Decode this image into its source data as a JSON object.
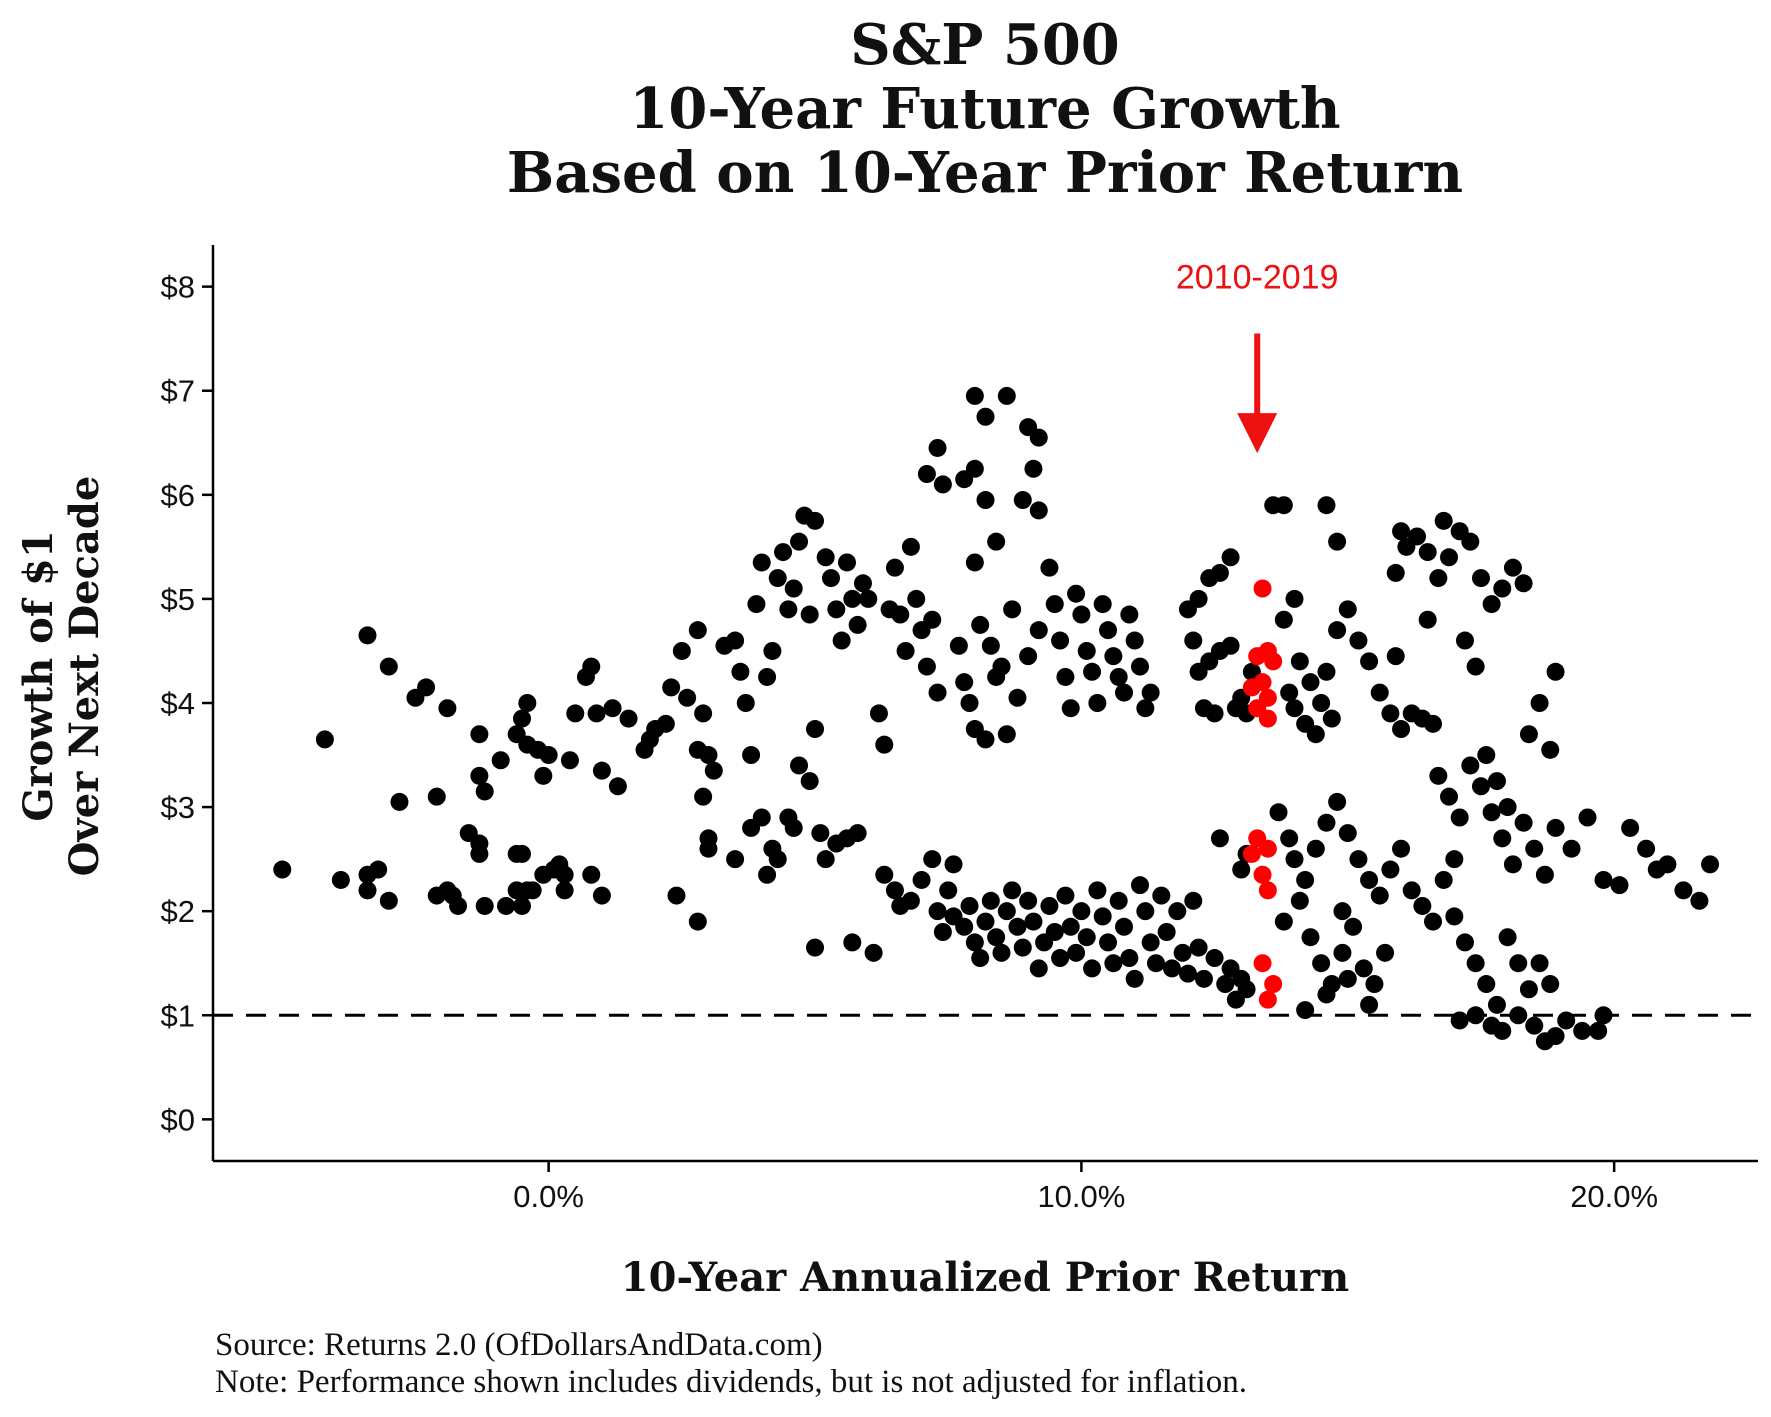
{
  "chart_data": {
    "type": "scatter",
    "title_lines": [
      "S&P 500",
      "10-Year Future Growth",
      "Based on 10-Year Prior Return"
    ],
    "xlabel": "10-Year Annualized Prior Return",
    "ylabel_lines": [
      "Growth of $1",
      "Over Next Decade"
    ],
    "x_ticks": [
      0,
      10,
      20
    ],
    "x_tick_labels": [
      "0.0%",
      "10.0%",
      "20.0%"
    ],
    "y_ticks": [
      0,
      1,
      2,
      3,
      4,
      5,
      6,
      7,
      8
    ],
    "y_tick_labels": [
      "$0",
      "$1",
      "$2",
      "$3",
      "$4",
      "$5",
      "$6",
      "$7",
      "$8"
    ],
    "xlim": [
      -6.3,
      22.7
    ],
    "ylim": [
      -0.4,
      8.4
    ],
    "reference_line": {
      "y": 1,
      "style": "dashed"
    },
    "grid": false,
    "colors": {
      "points": "#000000",
      "highlight": "#ff0000",
      "annotation": "#ee1111"
    },
    "annotation": {
      "text": "2010-2019",
      "arrow_x": 13.3,
      "arrow_from_y": 7.55,
      "arrow_to_y": 6.4
    },
    "highlight_points": [
      [
        13.4,
        5.1
      ],
      [
        13.3,
        4.45
      ],
      [
        13.5,
        4.5
      ],
      [
        13.6,
        4.4
      ],
      [
        13.2,
        4.15
      ],
      [
        13.4,
        4.2
      ],
      [
        13.5,
        4.05
      ],
      [
        13.3,
        3.95
      ],
      [
        13.5,
        3.85
      ],
      [
        13.3,
        2.7
      ],
      [
        13.5,
        2.6
      ],
      [
        13.2,
        2.55
      ],
      [
        13.4,
        2.35
      ],
      [
        13.5,
        2.2
      ],
      [
        13.4,
        1.5
      ],
      [
        13.6,
        1.3
      ],
      [
        13.5,
        1.15
      ]
    ],
    "points": [
      [
        -5,
        2.4
      ],
      [
        -4.2,
        3.65
      ],
      [
        -3.9,
        2.3
      ],
      [
        -3.4,
        4.65
      ],
      [
        -3.4,
        2.35
      ],
      [
        -3.2,
        2.4
      ],
      [
        -3.0,
        4.35
      ],
      [
        -2.8,
        3.05
      ],
      [
        -2.5,
        4.05
      ],
      [
        -2.3,
        4.15
      ],
      [
        -2.1,
        3.1
      ],
      [
        -1.9,
        3.95
      ],
      [
        -3.4,
        2.2
      ],
      [
        -3.0,
        2.1
      ],
      [
        -2.1,
        2.15
      ],
      [
        -1.8,
        2.15
      ],
      [
        -1.9,
        2.2
      ],
      [
        -1.5,
        2.75
      ],
      [
        -1.3,
        2.55
      ],
      [
        -1.3,
        2.65
      ],
      [
        -1.7,
        2.05
      ],
      [
        -1.3,
        3.3
      ],
      [
        -1.3,
        3.7
      ],
      [
        -1.2,
        3.15
      ],
      [
        -0.9,
        3.45
      ],
      [
        -0.6,
        3.7
      ],
      [
        -0.5,
        3.85
      ],
      [
        -0.4,
        3.6
      ],
      [
        -0.2,
        3.55
      ],
      [
        -0.6,
        2.55
      ],
      [
        -1.2,
        2.05
      ],
      [
        -0.8,
        2.05
      ],
      [
        -0.5,
        2.05
      ],
      [
        -0.4,
        2.2
      ],
      [
        -0.5,
        2.55
      ],
      [
        -0.6,
        2.2
      ],
      [
        -0.3,
        2.2
      ],
      [
        -0.1,
        2.35
      ],
      [
        0.1,
        2.4
      ],
      [
        0.2,
        2.45
      ],
      [
        0.3,
        2.35
      ],
      [
        -0.4,
        4.0
      ],
      [
        0.0,
        3.5
      ],
      [
        -0.1,
        3.3
      ],
      [
        0.3,
        2.2
      ],
      [
        0.4,
        3.45
      ],
      [
        0.5,
        3.9
      ],
      [
        0.7,
        4.25
      ],
      [
        0.8,
        4.35
      ],
      [
        0.9,
        3.9
      ],
      [
        0.8,
        2.35
      ],
      [
        1.0,
        2.15
      ],
      [
        1.0,
        3.35
      ],
      [
        1.2,
        3.95
      ],
      [
        1.3,
        3.2
      ],
      [
        1.5,
        3.85
      ],
      [
        1.8,
        3.55
      ],
      [
        1.9,
        3.65
      ],
      [
        2.0,
        3.75
      ],
      [
        2.2,
        3.8
      ],
      [
        2.3,
        4.15
      ],
      [
        2.4,
        2.15
      ],
      [
        2.5,
        4.5
      ],
      [
        2.6,
        4.05
      ],
      [
        2.8,
        3.55
      ],
      [
        2.8,
        4.7
      ],
      [
        2.9,
        3.9
      ],
      [
        3.0,
        3.5
      ],
      [
        3.1,
        3.35
      ],
      [
        2.9,
        3.1
      ],
      [
        3.0,
        2.7
      ],
      [
        3.0,
        2.6
      ],
      [
        2.8,
        1.9
      ],
      [
        3.3,
        4.55
      ],
      [
        3.5,
        4.6
      ],
      [
        3.6,
        4.3
      ],
      [
        3.7,
        4.0
      ],
      [
        3.8,
        3.5
      ],
      [
        3.9,
        4.95
      ],
      [
        4.0,
        5.35
      ],
      [
        4.1,
        4.25
      ],
      [
        4.2,
        4.5
      ],
      [
        4.3,
        5.2
      ],
      [
        4.4,
        5.45
      ],
      [
        4.5,
        4.9
      ],
      [
        4.6,
        5.1
      ],
      [
        4.7,
        5.55
      ],
      [
        4.8,
        5.8
      ],
      [
        4.9,
        4.85
      ],
      [
        5.0,
        5.75
      ],
      [
        3.5,
        2.5
      ],
      [
        3.8,
        2.8
      ],
      [
        4.0,
        2.9
      ],
      [
        4.2,
        2.6
      ],
      [
        4.3,
        2.5
      ],
      [
        4.1,
        2.35
      ],
      [
        4.5,
        2.9
      ],
      [
        4.6,
        2.8
      ],
      [
        4.7,
        3.4
      ],
      [
        4.9,
        3.25
      ],
      [
        5.0,
        3.75
      ],
      [
        5.2,
        5.4
      ],
      [
        5.3,
        5.2
      ],
      [
        5.4,
        4.9
      ],
      [
        5.5,
        4.6
      ],
      [
        5.6,
        5.35
      ],
      [
        5.7,
        5.0
      ],
      [
        5.8,
        4.75
      ],
      [
        5.9,
        5.15
      ],
      [
        6.0,
        5.0
      ],
      [
        5.1,
        2.75
      ],
      [
        5.2,
        2.5
      ],
      [
        5.4,
        2.65
      ],
      [
        5.6,
        2.7
      ],
      [
        5.8,
        2.75
      ],
      [
        5.0,
        1.65
      ],
      [
        5.7,
        1.7
      ],
      [
        6.1,
        1.6
      ],
      [
        6.2,
        3.9
      ],
      [
        6.3,
        3.6
      ],
      [
        6.4,
        4.9
      ],
      [
        6.5,
        5.3
      ],
      [
        6.6,
        4.85
      ],
      [
        6.7,
        4.5
      ],
      [
        6.8,
        5.5
      ],
      [
        6.9,
        5.0
      ],
      [
        7.0,
        4.7
      ],
      [
        7.1,
        4.35
      ],
      [
        7.2,
        4.8
      ],
      [
        7.3,
        4.1
      ],
      [
        6.3,
        2.35
      ],
      [
        6.5,
        2.2
      ],
      [
        6.6,
        2.05
      ],
      [
        6.8,
        2.1
      ],
      [
        7.0,
        2.3
      ],
      [
        7.2,
        2.5
      ],
      [
        7.3,
        2.0
      ],
      [
        7.4,
        1.8
      ],
      [
        7.5,
        2.2
      ],
      [
        7.6,
        2.45
      ],
      [
        7.1,
        6.2
      ],
      [
        7.3,
        6.45
      ],
      [
        7.4,
        6.1
      ],
      [
        7.8,
        6.15
      ],
      [
        8.0,
        6.95
      ],
      [
        8.2,
        6.75
      ],
      [
        8.6,
        6.95
      ],
      [
        8.2,
        5.95
      ],
      [
        8.0,
        6.25
      ],
      [
        9.0,
        6.65
      ],
      [
        9.2,
        6.55
      ],
      [
        9.1,
        6.25
      ],
      [
        8.9,
        5.95
      ],
      [
        9.2,
        5.85
      ],
      [
        8.4,
        5.55
      ],
      [
        8.0,
        5.35
      ],
      [
        8.1,
        4.75
      ],
      [
        8.3,
        4.55
      ],
      [
        8.5,
        4.35
      ],
      [
        8.7,
        4.9
      ],
      [
        7.7,
        4.55
      ],
      [
        7.8,
        4.2
      ],
      [
        7.9,
        4.0
      ],
      [
        8.0,
        3.75
      ],
      [
        8.2,
        3.65
      ],
      [
        8.4,
        4.25
      ],
      [
        8.6,
        3.7
      ],
      [
        8.8,
        4.05
      ],
      [
        9.0,
        4.45
      ],
      [
        9.2,
        4.7
      ],
      [
        7.6,
        1.95
      ],
      [
        7.8,
        1.85
      ],
      [
        7.9,
        2.05
      ],
      [
        8.0,
        1.7
      ],
      [
        8.1,
        1.55
      ],
      [
        8.2,
        1.9
      ],
      [
        8.3,
        2.1
      ],
      [
        8.4,
        1.75
      ],
      [
        8.5,
        1.6
      ],
      [
        8.6,
        2.0
      ],
      [
        8.7,
        2.2
      ],
      [
        8.8,
        1.85
      ],
      [
        8.9,
        1.65
      ],
      [
        9.0,
        2.1
      ],
      [
        9.1,
        1.9
      ],
      [
        9.2,
        1.45
      ],
      [
        9.3,
        1.7
      ],
      [
        9.4,
        2.05
      ],
      [
        9.5,
        1.8
      ],
      [
        9.6,
        1.55
      ],
      [
        9.4,
        5.3
      ],
      [
        9.5,
        4.95
      ],
      [
        9.6,
        4.6
      ],
      [
        9.7,
        4.25
      ],
      [
        9.8,
        3.95
      ],
      [
        9.9,
        5.05
      ],
      [
        10.0,
        4.85
      ],
      [
        10.1,
        4.5
      ],
      [
        10.2,
        4.3
      ],
      [
        10.3,
        4.0
      ],
      [
        10.4,
        4.95
      ],
      [
        10.5,
        4.7
      ],
      [
        10.6,
        4.45
      ],
      [
        10.7,
        4.25
      ],
      [
        10.8,
        4.1
      ],
      [
        10.9,
        4.85
      ],
      [
        11.0,
        4.6
      ],
      [
        11.1,
        4.35
      ],
      [
        11.2,
        3.95
      ],
      [
        11.3,
        4.1
      ],
      [
        9.7,
        2.15
      ],
      [
        9.8,
        1.85
      ],
      [
        9.9,
        1.6
      ],
      [
        10.0,
        2.0
      ],
      [
        10.1,
        1.75
      ],
      [
        10.2,
        1.45
      ],
      [
        10.3,
        2.2
      ],
      [
        10.4,
        1.95
      ],
      [
        10.5,
        1.7
      ],
      [
        10.6,
        1.5
      ],
      [
        10.7,
        2.1
      ],
      [
        10.8,
        1.85
      ],
      [
        10.9,
        1.55
      ],
      [
        11.0,
        1.35
      ],
      [
        11.1,
        2.25
      ],
      [
        11.2,
        2.0
      ],
      [
        11.3,
        1.7
      ],
      [
        11.4,
        1.5
      ],
      [
        11.5,
        2.15
      ],
      [
        11.6,
        1.8
      ],
      [
        11.7,
        1.45
      ],
      [
        11.8,
        2.0
      ],
      [
        11.9,
        1.6
      ],
      [
        12.0,
        1.4
      ],
      [
        12.1,
        2.1
      ],
      [
        12.2,
        1.65
      ],
      [
        12.3,
        1.35
      ],
      [
        12.5,
        1.55
      ],
      [
        12.7,
        1.3
      ],
      [
        12.8,
        1.45
      ],
      [
        12.9,
        1.15
      ],
      [
        13.0,
        1.35
      ],
      [
        13.1,
        1.25
      ],
      [
        12.6,
        2.7
      ],
      [
        12.2,
        4.3
      ],
      [
        12.4,
        4.4
      ],
      [
        12.6,
        4.5
      ],
      [
        12.8,
        4.55
      ],
      [
        12.3,
        3.95
      ],
      [
        12.5,
        3.9
      ],
      [
        12.0,
        4.9
      ],
      [
        12.2,
        5.0
      ],
      [
        12.4,
        5.2
      ],
      [
        12.6,
        5.25
      ],
      [
        12.8,
        5.4
      ],
      [
        12.1,
        4.6
      ],
      [
        13.2,
        4.3
      ],
      [
        13.0,
        4.05
      ],
      [
        12.9,
        3.95
      ],
      [
        13.1,
        3.9
      ],
      [
        13.8,
        4.8
      ],
      [
        14.0,
        5.0
      ],
      [
        13.6,
        5.9
      ],
      [
        13.8,
        5.9
      ],
      [
        14.6,
        5.9
      ],
      [
        14.8,
        5.55
      ],
      [
        14.1,
        4.4
      ],
      [
        14.3,
        4.2
      ],
      [
        14.5,
        4.0
      ],
      [
        14.7,
        3.85
      ],
      [
        13.9,
        4.1
      ],
      [
        14.0,
        3.95
      ],
      [
        14.2,
        3.8
      ],
      [
        14.4,
        3.7
      ],
      [
        14.6,
        4.3
      ],
      [
        14.8,
        4.7
      ],
      [
        15.0,
        4.9
      ],
      [
        15.2,
        4.6
      ],
      [
        15.4,
        4.4
      ],
      [
        15.6,
        4.1
      ],
      [
        15.8,
        3.9
      ],
      [
        16.0,
        3.75
      ],
      [
        15.9,
        5.25
      ],
      [
        16.1,
        5.5
      ],
      [
        16.3,
        5.6
      ],
      [
        16.5,
        5.45
      ],
      [
        16.7,
        5.2
      ],
      [
        16.9,
        5.4
      ],
      [
        17.1,
        5.65
      ],
      [
        17.3,
        5.55
      ],
      [
        17.5,
        5.2
      ],
      [
        17.7,
        4.95
      ],
      [
        17.9,
        5.1
      ],
      [
        18.1,
        5.3
      ],
      [
        18.3,
        5.15
      ],
      [
        17.2,
        4.6
      ],
      [
        17.4,
        4.35
      ],
      [
        16.2,
        3.9
      ],
      [
        16.4,
        3.85
      ],
      [
        16.6,
        3.8
      ],
      [
        13.7,
        2.95
      ],
      [
        13.9,
        2.7
      ],
      [
        14.0,
        2.5
      ],
      [
        14.2,
        2.3
      ],
      [
        14.4,
        2.6
      ],
      [
        14.6,
        2.85
      ],
      [
        14.8,
        3.05
      ],
      [
        15.0,
        2.75
      ],
      [
        15.2,
        2.5
      ],
      [
        15.4,
        2.3
      ],
      [
        15.6,
        2.15
      ],
      [
        15.8,
        2.4
      ],
      [
        16.0,
        2.6
      ],
      [
        16.2,
        2.2
      ],
      [
        16.4,
        2.05
      ],
      [
        16.6,
        1.9
      ],
      [
        16.8,
        2.3
      ],
      [
        17.0,
        2.5
      ],
      [
        13.8,
        1.9
      ],
      [
        14.1,
        2.1
      ],
      [
        14.3,
        1.75
      ],
      [
        14.5,
        1.5
      ],
      [
        14.7,
        1.3
      ],
      [
        14.9,
        1.6
      ],
      [
        15.1,
        1.85
      ],
      [
        15.3,
        1.45
      ],
      [
        15.5,
        1.3
      ],
      [
        15.7,
        1.6
      ],
      [
        14.2,
        1.05
      ],
      [
        14.6,
        1.2
      ],
      [
        15.0,
        1.35
      ],
      [
        15.4,
        1.1
      ],
      [
        16.7,
        3.3
      ],
      [
        16.9,
        3.1
      ],
      [
        17.1,
        2.9
      ],
      [
        17.3,
        3.4
      ],
      [
        17.5,
        3.2
      ],
      [
        17.7,
        2.95
      ],
      [
        17.9,
        2.7
      ],
      [
        18.1,
        2.45
      ],
      [
        18.3,
        2.85
      ],
      [
        18.5,
        2.6
      ],
      [
        18.7,
        2.35
      ],
      [
        18.9,
        2.8
      ],
      [
        17.0,
        1.95
      ],
      [
        17.2,
        1.7
      ],
      [
        17.4,
        1.5
      ],
      [
        17.6,
        1.3
      ],
      [
        17.8,
        1.1
      ],
      [
        18.0,
        1.75
      ],
      [
        18.2,
        1.5
      ],
      [
        18.4,
        1.25
      ],
      [
        18.6,
        1.5
      ],
      [
        18.8,
        1.3
      ],
      [
        17.1,
        0.95
      ],
      [
        17.4,
        1.0
      ],
      [
        17.7,
        0.9
      ],
      [
        17.9,
        0.85
      ],
      [
        18.2,
        1.0
      ],
      [
        18.5,
        0.9
      ],
      [
        18.7,
        0.75
      ],
      [
        18.9,
        0.8
      ],
      [
        19.1,
        0.95
      ],
      [
        19.4,
        0.85
      ],
      [
        19.7,
        0.85
      ],
      [
        19.8,
        1.0
      ],
      [
        18.8,
        3.55
      ],
      [
        18.9,
        4.3
      ],
      [
        18.6,
        4.0
      ],
      [
        18.4,
        3.7
      ],
      [
        19.2,
        2.6
      ],
      [
        19.5,
        2.9
      ],
      [
        19.8,
        2.3
      ],
      [
        20.1,
        2.25
      ],
      [
        20.3,
        2.8
      ],
      [
        20.6,
        2.6
      ],
      [
        20.8,
        2.4
      ],
      [
        21.0,
        2.45
      ],
      [
        21.3,
        2.2
      ],
      [
        21.6,
        2.1
      ],
      [
        21.8,
        2.45
      ],
      [
        17.6,
        3.5
      ],
      [
        17.8,
        3.25
      ],
      [
        18.0,
        3.0
      ],
      [
        16.5,
        4.8
      ],
      [
        16.8,
        5.75
      ],
      [
        16.0,
        5.65
      ],
      [
        15.9,
        4.45
      ],
      [
        13.0,
        2.4
      ],
      [
        13.1,
        2.55
      ],
      [
        14.9,
        2.0
      ]
    ]
  },
  "footnotes": {
    "source": "Source: Returns 2.0 (OfDollarsAndData.com)",
    "note": "Note: Performance shown includes dividends, but is not adjusted for inflation."
  }
}
